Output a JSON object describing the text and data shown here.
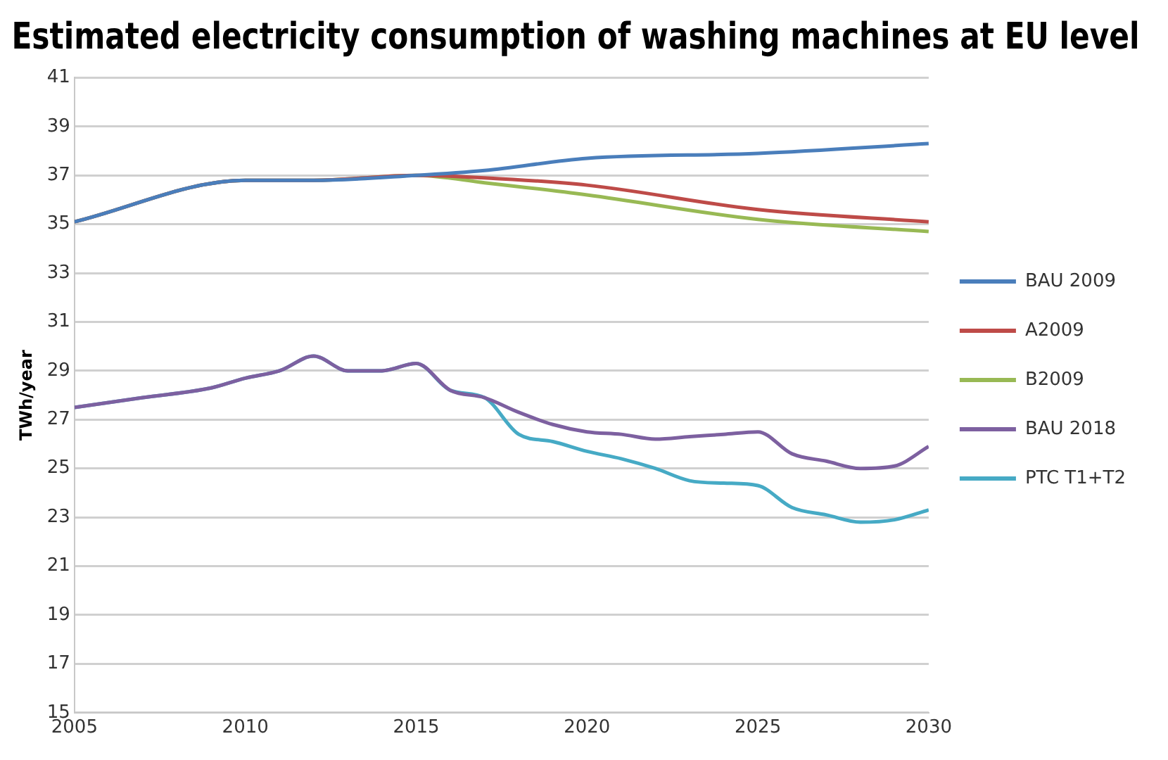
{
  "chart_data": {
    "type": "line",
    "title": "Estimated electricity consumption of washing machines at EU level",
    "ylabel": "TWh/year",
    "xlim": [
      2005,
      2030
    ],
    "xticks": [
      2005,
      2010,
      2015,
      2020,
      2025,
      2030
    ],
    "ylim": [
      15,
      41
    ],
    "yticks": [
      15,
      17,
      19,
      21,
      23,
      25,
      27,
      29,
      31,
      33,
      35,
      37,
      39,
      41
    ],
    "grid": "y",
    "legend": "right",
    "marker": "none",
    "line_style": "solid",
    "series": [
      {
        "name": "BAU 2009",
        "color": "#4a7ebb",
        "x": [
          2005,
          2010,
          2012,
          2015,
          2017,
          2020,
          2025,
          2030
        ],
        "values": [
          35.1,
          36.8,
          36.8,
          37.0,
          37.2,
          37.7,
          37.9,
          38.3
        ]
      },
      {
        "name": "A2009",
        "color": "#be4b48",
        "x": [
          2005,
          2010,
          2012,
          2015,
          2017,
          2020,
          2025,
          2030
        ],
        "values": [
          35.1,
          36.8,
          36.8,
          37.0,
          36.9,
          36.6,
          35.6,
          35.1
        ]
      },
      {
        "name": "B2009",
        "color": "#98b954",
        "x": [
          2005,
          2010,
          2012,
          2015,
          2017,
          2020,
          2025,
          2030
        ],
        "values": [
          35.1,
          36.8,
          36.8,
          37.0,
          36.7,
          36.2,
          35.2,
          34.7
        ]
      },
      {
        "name": "BAU 2018",
        "color": "#7d60a0",
        "x": [
          2005,
          2007,
          2009,
          2010,
          2011,
          2012,
          2013,
          2014,
          2015,
          2016,
          2017,
          2018,
          2019,
          2020,
          2021,
          2022,
          2023,
          2024,
          2025,
          2026,
          2027,
          2028,
          2029,
          2030
        ],
        "values": [
          27.5,
          27.9,
          28.3,
          28.7,
          29.0,
          29.6,
          29.0,
          29.0,
          29.3,
          28.2,
          27.9,
          27.3,
          26.8,
          26.5,
          26.4,
          26.2,
          26.3,
          26.4,
          26.5,
          25.6,
          25.3,
          25.0,
          25.1,
          25.9
        ]
      },
      {
        "name": "PTC T1+T2",
        "color": "#46aac5",
        "x": [
          2005,
          2007,
          2009,
          2010,
          2011,
          2012,
          2013,
          2014,
          2015,
          2016,
          2017,
          2018,
          2019,
          2020,
          2021,
          2022,
          2023,
          2024,
          2025,
          2026,
          2027,
          2028,
          2029,
          2030
        ],
        "values": [
          27.5,
          27.9,
          28.3,
          28.7,
          29.0,
          29.6,
          29.0,
          29.0,
          29.3,
          28.2,
          27.9,
          26.4,
          26.1,
          25.7,
          25.4,
          25.0,
          24.5,
          24.4,
          24.3,
          23.4,
          23.1,
          22.8,
          22.9,
          23.3
        ]
      }
    ]
  }
}
